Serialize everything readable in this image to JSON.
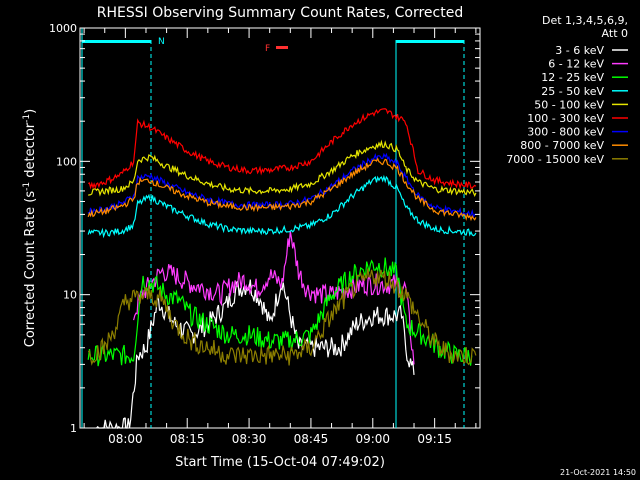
{
  "chart_data": {
    "type": "line",
    "title": "RHESSI Observing Summary Count Rates, Corrected",
    "xlabel": "Start Time (15-Oct-04 07:49:02)",
    "ylabel_main": "Corrected Count Rate (s",
    "ylabel_sup1": "-1",
    "ylabel_mid": " detector",
    "ylabel_sup2": "-1",
    "ylabel_end": ")",
    "y_scale": "log",
    "xlim": [
      "07:49",
      "09:26"
    ],
    "ylim": [
      1,
      1000
    ],
    "x_ticks": [
      "08:00",
      "08:15",
      "08:30",
      "08:45",
      "09:00",
      "09:15"
    ],
    "y_ticks": [
      "1",
      "10",
      "100",
      "1000"
    ],
    "grid": false,
    "legend_header": [
      "Det 1,3,4,5,6,9,",
      "Att 0"
    ],
    "legend_position": "top-right (outside plot)",
    "timestamp": "21-Oct-2021 14:50",
    "annotations": {
      "night_marker": "N",
      "flare_marker": "F"
    },
    "series": [
      {
        "name": "3 - 6 keV",
        "color": "#ffffff",
        "t": [
          "07:53",
          "07:56",
          "07:59",
          "08:01",
          "08:03",
          "08:05",
          "08:08",
          "08:12",
          "08:16",
          "08:20",
          "08:24",
          "08:27",
          "08:30",
          "08:33",
          "08:35",
          "08:38",
          "08:40",
          "08:42",
          "08:45",
          "08:48",
          "08:52",
          "08:56",
          "09:00",
          "09:04",
          "09:07",
          "09:08",
          "09:10"
        ],
        "v": [
          1,
          1,
          1,
          1,
          3.5,
          4,
          9,
          6,
          5,
          6,
          8,
          11,
          12,
          9,
          6,
          13,
          7,
          4,
          4,
          4,
          4,
          6,
          7,
          7,
          7,
          4,
          2.5
        ]
      },
      {
        "name": "6 - 12 keV",
        "color": "#ff3cff",
        "t": [
          "08:02",
          "08:04",
          "08:06",
          "08:09",
          "08:12",
          "08:16",
          "08:20",
          "08:23",
          "08:26",
          "08:29",
          "08:32",
          "08:35",
          "08:38",
          "08:40",
          "08:42",
          "08:44",
          "08:47",
          "08:50",
          "08:54",
          "08:58",
          "09:02",
          "09:06",
          "09:08",
          "09:10"
        ],
        "v": [
          7,
          10,
          12,
          15,
          14,
          12,
          11,
          10,
          12,
          13,
          11,
          14,
          12,
          30,
          15,
          11,
          10,
          10,
          11,
          12,
          12,
          12,
          11,
          3
        ]
      },
      {
        "name": "12 - 25 keV",
        "color": "#00ff00",
        "t": [
          "07:51",
          "07:54",
          "07:57",
          "08:00",
          "08:02",
          "08:04",
          "08:07",
          "08:10",
          "08:13",
          "08:16",
          "08:20",
          "08:25",
          "08:30",
          "08:35",
          "08:40",
          "08:45",
          "08:50",
          "08:55",
          "09:00",
          "09:03",
          "09:06",
          "09:08",
          "09:12",
          "09:16",
          "09:20",
          "09:24"
        ],
        "v": [
          3.5,
          3.5,
          3.5,
          3.5,
          3.5,
          13,
          12,
          10,
          9,
          7,
          6,
          5,
          5,
          4.5,
          4.5,
          5,
          10,
          14,
          17,
          16,
          14,
          6,
          5,
          4,
          3.5,
          3.5
        ]
      },
      {
        "name": "25 - 50 keV",
        "color": "#00ffff",
        "t": [
          "07:51",
          "07:55",
          "07:59",
          "08:02",
          "08:03",
          "08:06",
          "08:10",
          "08:15",
          "08:20",
          "08:25",
          "08:30",
          "08:35",
          "08:40",
          "08:45",
          "08:50",
          "08:55",
          "09:00",
          "09:03",
          "09:06",
          "09:08",
          "09:11",
          "09:15",
          "09:20",
          "09:25"
        ],
        "v": [
          29,
          29,
          30,
          33,
          48,
          54,
          46,
          39,
          34,
          31,
          30,
          30,
          31,
          33,
          40,
          55,
          72,
          75,
          62,
          45,
          36,
          31,
          30,
          29
        ]
      },
      {
        "name": "50 - 100 keV",
        "color": "#e6e600",
        "t": [
          "07:51",
          "07:55",
          "07:59",
          "08:02",
          "08:03",
          "08:06",
          "08:10",
          "08:15",
          "08:20",
          "08:25",
          "08:30",
          "08:35",
          "08:40",
          "08:45",
          "08:50",
          "08:55",
          "09:00",
          "09:03",
          "09:06",
          "09:08",
          "09:11",
          "09:15",
          "09:20",
          "09:25"
        ],
        "v": [
          58,
          60,
          62,
          70,
          102,
          108,
          92,
          78,
          68,
          62,
          60,
          60,
          62,
          68,
          85,
          110,
          130,
          135,
          122,
          88,
          70,
          62,
          60,
          58
        ]
      },
      {
        "name": "100 - 300 keV",
        "color": "#ff0000",
        "t": [
          "07:51",
          "07:55",
          "07:59",
          "08:02",
          "08:03",
          "08:06",
          "08:10",
          "08:15",
          "08:20",
          "08:25",
          "08:30",
          "08:35",
          "08:40",
          "08:45",
          "08:50",
          "08:55",
          "09:00",
          "09:03",
          "09:06",
          "09:08",
          "09:11",
          "09:15",
          "09:20",
          "09:25"
        ],
        "v": [
          65,
          70,
          80,
          100,
          195,
          180,
          150,
          120,
          100,
          90,
          85,
          86,
          90,
          100,
          140,
          190,
          230,
          240,
          215,
          200,
          85,
          72,
          68,
          65
        ]
      },
      {
        "name": "300 - 800 keV",
        "color": "#0000ff",
        "t": [
          "07:51",
          "07:55",
          "07:59",
          "08:02",
          "08:03",
          "08:06",
          "08:10",
          "08:15",
          "08:20",
          "08:25",
          "08:30",
          "08:35",
          "08:40",
          "08:45",
          "08:50",
          "08:55",
          "09:00",
          "09:03",
          "09:06",
          "09:08",
          "09:11",
          "09:15",
          "09:20",
          "09:25"
        ],
        "v": [
          42,
          44,
          48,
          55,
          75,
          78,
          68,
          58,
          52,
          48,
          47,
          47,
          48,
          52,
          65,
          85,
          105,
          108,
          95,
          75,
          55,
          45,
          42,
          40
        ]
      },
      {
        "name": "800 - 7000 keV",
        "color": "#ff8c00",
        "t": [
          "07:51",
          "07:55",
          "07:59",
          "08:02",
          "08:03",
          "08:06",
          "08:10",
          "08:15",
          "08:20",
          "08:25",
          "08:30",
          "08:35",
          "08:40",
          "08:45",
          "08:50",
          "08:55",
          "09:00",
          "09:03",
          "09:06",
          "09:08",
          "09:11",
          "09:15",
          "09:20",
          "09:25"
        ],
        "v": [
          40,
          42,
          46,
          52,
          70,
          72,
          63,
          55,
          49,
          46,
          45,
          45,
          46,
          50,
          62,
          80,
          98,
          100,
          88,
          70,
          52,
          43,
          40,
          38
        ]
      },
      {
        "name": "7000 - 15000 keV",
        "color": "#8b7d00",
        "t": [
          "07:51",
          "07:55",
          "07:58",
          "08:00",
          "08:03",
          "08:06",
          "08:09",
          "08:12",
          "08:16",
          "08:20",
          "08:25",
          "08:30",
          "08:35",
          "08:40",
          "08:45",
          "08:50",
          "08:55",
          "09:00",
          "09:04",
          "09:08",
          "09:12",
          "09:16",
          "09:20",
          "09:25"
        ],
        "v": [
          3.5,
          4,
          6,
          9,
          9.5,
          10,
          9,
          6,
          4.5,
          4,
          3.5,
          3.5,
          3.5,
          3.5,
          4,
          7,
          11,
          14,
          13,
          10,
          6,
          4,
          3.5,
          3.5
        ]
      }
    ]
  }
}
